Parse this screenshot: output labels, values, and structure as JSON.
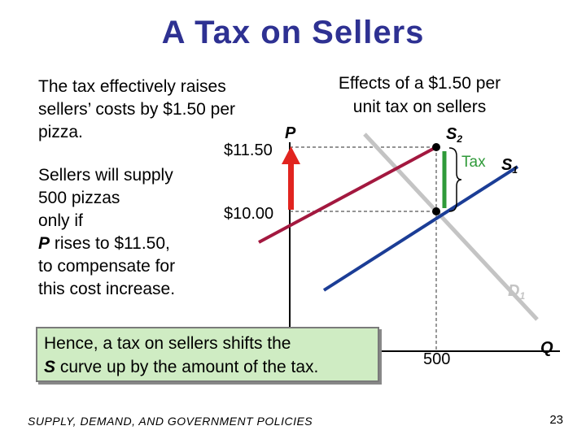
{
  "title": "A Tax on Sellers",
  "text": {
    "para1": "The tax effectively raises sellers’ costs by $1.50 per pizza.",
    "para2_line1": "Sellers will supply",
    "para2_line2": "500 pizzas",
    "para2_line3": "only if",
    "para2_P": "P",
    "para2_line4_rest": " rises to $11.50,",
    "para2_line5": "to compensate for",
    "para2_line6": "this cost increase.",
    "effects_line1": "Effects of a $1.50 per",
    "effects_line2": "unit tax on sellers",
    "hence_line1": "Hence, a tax on sellers shifts the",
    "hence_S": "S",
    "hence_line2_rest": " curve up by the amount of the tax."
  },
  "axes": {
    "y_label": "P",
    "x_label": "Q",
    "y_ticks": [
      "$11.50",
      "$10.00"
    ],
    "x_ticks": [
      "500"
    ]
  },
  "curves": {
    "s2": {
      "base": "S",
      "sub": "2",
      "color": "#a3183f"
    },
    "s1": {
      "base": "S",
      "sub": "1",
      "color": "#1b3d96"
    },
    "d1": {
      "base": "D",
      "sub": "1",
      "color": "#c4c4c4"
    }
  },
  "tax_label": "Tax",
  "colors": {
    "title": "#2e3192",
    "arrow": "#e1241f",
    "tax_bar": "#2f9a39"
  },
  "footer": "SUPPLY, DEMAND, AND GOVERNMENT POLICIES",
  "page_number": "23"
}
